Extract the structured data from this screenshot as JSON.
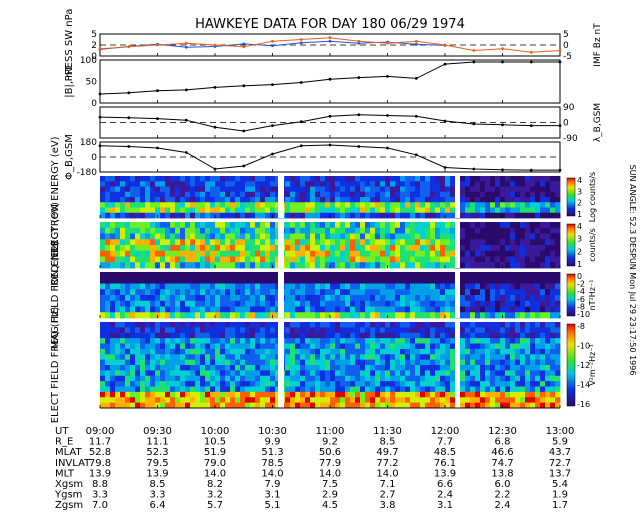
{
  "chart_data": {
    "type": "line",
    "title": "HAWKEYE DATA FOR DAY 180 06/29 1974",
    "side_text": "SUN ANGLE: 52.3 DESPUN Mon Jul 29 23:17:50 1996",
    "x_ticks": [
      "09:00",
      "09:30",
      "10:00",
      "10:30",
      "11:00",
      "11:30",
      "12:00",
      "12:30",
      "13:00"
    ],
    "colors": {
      "press": "#2f4fd0",
      "imf": "#e8601c",
      "line": "#000000"
    },
    "panels": [
      {
        "id": "press_imf",
        "ylabel_left": "PRESS SW nPa",
        "ylabel_right": "IMF Bz nT",
        "left_ticks": [
          "0",
          "2",
          "5"
        ],
        "right_ticks": [
          "-5",
          "0",
          "5"
        ],
        "series": [
          {
            "name": "PRESS",
            "x": [
              "09:00",
              "09:15",
              "09:30",
              "09:45",
              "10:00",
              "10:15",
              "10:30",
              "10:45",
              "11:00",
              "11:15",
              "11:30",
              "11:45",
              "12:00"
            ],
            "y": [
              1.8,
              2.6,
              3.2,
              2.4,
              2.6,
              3.3,
              2.8,
              3.6,
              4.0,
              3.5,
              3.8,
              3.2,
              2.9
            ]
          },
          {
            "name": "IMF Bz",
            "x": [
              "09:00",
              "09:15",
              "09:30",
              "09:45",
              "10:00",
              "10:15",
              "10:30",
              "10:45",
              "11:00",
              "11:15",
              "11:30",
              "11:45",
              "12:00",
              "12:15",
              "12:30",
              "12:45",
              "13:00"
            ],
            "y": [
              -2,
              -1,
              0,
              1,
              0,
              -1,
              2,
              3,
              4,
              2,
              1,
              2,
              0,
              -3,
              -2,
              -4,
              -3
            ]
          }
        ]
      },
      {
        "id": "b_total",
        "ylabel_left": "|B|, nT",
        "left_ticks": [
          "0",
          "50",
          "100"
        ],
        "series": [
          {
            "name": "|B|",
            "x": [
              "09:00",
              "09:15",
              "09:30",
              "09:45",
              "10:00",
              "10:15",
              "10:30",
              "10:45",
              "11:00",
              "11:15",
              "11:30",
              "11:45",
              "12:00",
              "12:15",
              "12:30",
              "12:45",
              "13:00"
            ],
            "y": [
              22,
              25,
              30,
              32,
              38,
              42,
              45,
              50,
              58,
              62,
              65,
              60,
              95,
              100,
              100,
              100,
              100
            ]
          }
        ]
      },
      {
        "id": "lambda",
        "ylabel_right": "λ_B,GSM",
        "right_ticks": [
          "90",
          "0",
          "-90"
        ],
        "series": [
          {
            "name": "λ",
            "x": [
              "09:00",
              "09:15",
              "09:30",
              "09:45",
              "10:00",
              "10:15",
              "10:30",
              "10:45",
              "11:00",
              "11:15",
              "11:30",
              "11:45",
              "12:00",
              "12:15",
              "12:30",
              "12:45",
              "13:00"
            ],
            "y": [
              35,
              30,
              25,
              15,
              -30,
              -55,
              -20,
              5,
              40,
              50,
              45,
              40,
              10,
              -10,
              -15,
              -20,
              -20
            ]
          }
        ]
      },
      {
        "id": "phi",
        "ylabel_left": "Φ_B,GSM",
        "left_ticks": [
          "180",
          "0",
          "-180"
        ],
        "series": [
          {
            "name": "Φ",
            "x": [
              "09:00",
              "09:15",
              "09:30",
              "09:45",
              "10:00",
              "10:15",
              "10:30",
              "10:45",
              "11:00",
              "11:15",
              "11:30",
              "11:45",
              "12:00",
              "12:15",
              "12:30",
              "12:45",
              "13:00"
            ],
            "y": [
              150,
              140,
              120,
              60,
              -160,
              -120,
              40,
              150,
              160,
              140,
              120,
              30,
              -140,
              -160,
              -170,
              -175,
              -175
            ]
          }
        ]
      },
      {
        "id": "electron",
        "type": "heatmap",
        "ylabel_left": "ELECTRON ENERGY (eV)",
        "left_ticks": [
          "10^4",
          "10^3",
          "10^2"
        ],
        "colorbar_ticks": [
          "4",
          "3",
          "2",
          "1"
        ],
        "colorbar_label": "Log counts/s"
      },
      {
        "id": "ion",
        "type": "heatmap",
        "ylabel_left": "ION ENERGY (eV)",
        "left_ticks": [
          "10^4",
          "10^3",
          "10^2"
        ],
        "colorbar_ticks": [
          "4",
          "3",
          "2",
          "1"
        ],
        "colorbar_label": "counts/s"
      },
      {
        "id": "magfield",
        "type": "heatmap",
        "ylabel_left": "MAG FIELD FREQ (Hz)",
        "left_ticks": [
          "10^3",
          "10^1"
        ],
        "colorbar_ticks": [
          "0",
          "-2",
          "-4",
          "-6",
          "-8",
          "-10"
        ],
        "colorbar_label": "nT²Hz⁻¹"
      },
      {
        "id": "efield",
        "type": "heatmap",
        "ylabel_left": "ELECT FIELD FREQ (Hz)",
        "left_ticks": [
          "10^5",
          "10^4",
          "10^3",
          "10^1"
        ],
        "colorbar_ticks": [
          "-8",
          "-10",
          "-12",
          "-14",
          "-16"
        ],
        "colorbar_label": "V²m⁻²Hz⁻¹"
      }
    ],
    "table": {
      "rows": [
        {
          "label": "UT",
          "values": [
            "09:00",
            "09:30",
            "10:00",
            "10:30",
            "11:00",
            "11:30",
            "12:00",
            "12:30",
            "13:00"
          ]
        },
        {
          "label": "R_E",
          "values": [
            "11.7",
            "11.1",
            "10.5",
            "9.9",
            "9.2",
            "8.5",
            "7.7",
            "6.8",
            "5.9"
          ]
        },
        {
          "label": "MLAT",
          "values": [
            "52.8",
            "52.3",
            "51.9",
            "51.3",
            "50.6",
            "49.7",
            "48.5",
            "46.6",
            "43.7"
          ]
        },
        {
          "label": "INVLAT",
          "values": [
            "79.8",
            "79.5",
            "79.0",
            "78.5",
            "77.9",
            "77.2",
            "76.1",
            "74.7",
            "72.7"
          ]
        },
        {
          "label": "MLT",
          "values": [
            "13.9",
            "13.9",
            "14.0",
            "14.0",
            "14.0",
            "14.0",
            "13.9",
            "13.8",
            "13.7"
          ]
        },
        {
          "label": "Xgsm",
          "values": [
            "8.8",
            "8.5",
            "8.2",
            "7.9",
            "7.5",
            "7.1",
            "6.6",
            "6.0",
            "5.4"
          ]
        },
        {
          "label": "Ygsm",
          "values": [
            "3.3",
            "3.3",
            "3.2",
            "3.1",
            "2.9",
            "2.7",
            "2.4",
            "2.2",
            "1.9"
          ]
        },
        {
          "label": "Zgsm",
          "values": [
            "7.0",
            "6.4",
            "5.7",
            "5.1",
            "4.5",
            "3.8",
            "3.1",
            "2.4",
            "1.7"
          ]
        }
      ]
    }
  }
}
